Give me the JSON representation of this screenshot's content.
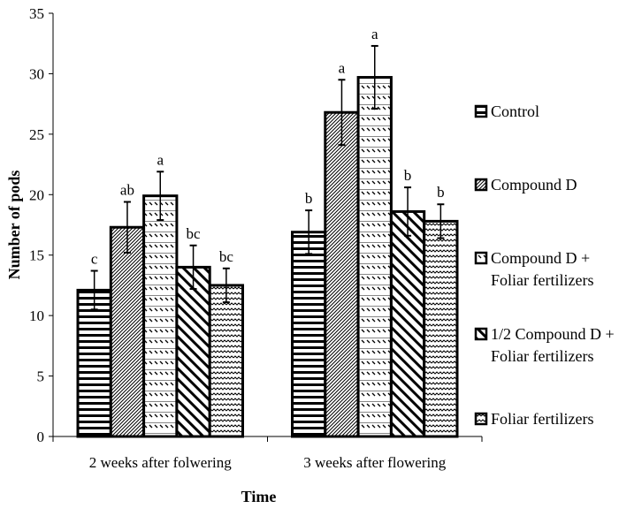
{
  "chart_data": {
    "type": "bar",
    "xlabel": "Time",
    "ylabel": "Number of pods",
    "ylim": [
      0,
      35
    ],
    "yticks": [
      "0",
      "5",
      "10",
      "15",
      "20",
      "25",
      "30",
      "35"
    ],
    "grid": false,
    "legend_position": "right",
    "categories": [
      "2 weeks after folwering",
      "3 weeks after flowering"
    ],
    "series": [
      {
        "name": "Control",
        "pattern": "horizontal-lines",
        "values": [
          12.1,
          16.9
        ],
        "errors": [
          1.6,
          1.8
        ],
        "letters": [
          "c",
          "b"
        ]
      },
      {
        "name": "Compound D",
        "pattern": "fine-diagonal",
        "values": [
          17.3,
          26.8
        ],
        "errors": [
          2.1,
          2.7
        ],
        "letters": [
          "ab",
          "a"
        ]
      },
      {
        "name": "Compound D + Foliar fertilizers",
        "legend_lines": [
          "Compound D +",
          "Foliar fertilizers"
        ],
        "pattern": "dashed-backslash",
        "values": [
          19.9,
          29.7
        ],
        "errors": [
          2.0,
          2.6
        ],
        "letters": [
          "a",
          "a"
        ]
      },
      {
        "name": "1/2 Compound D + Foliar fertilizers",
        "legend_lines": [
          "1/2 Compound D +",
          "Foliar fertilizers"
        ],
        "pattern": "wide-backslash",
        "values": [
          14.0,
          18.6
        ],
        "errors": [
          1.8,
          2.0
        ],
        "letters": [
          "bc",
          "b"
        ]
      },
      {
        "name": "Foliar fertilizers",
        "pattern": "wave",
        "values": [
          12.5,
          17.8
        ],
        "errors": [
          1.4,
          1.4
        ],
        "letters": [
          "bc",
          "b"
        ]
      }
    ]
  }
}
